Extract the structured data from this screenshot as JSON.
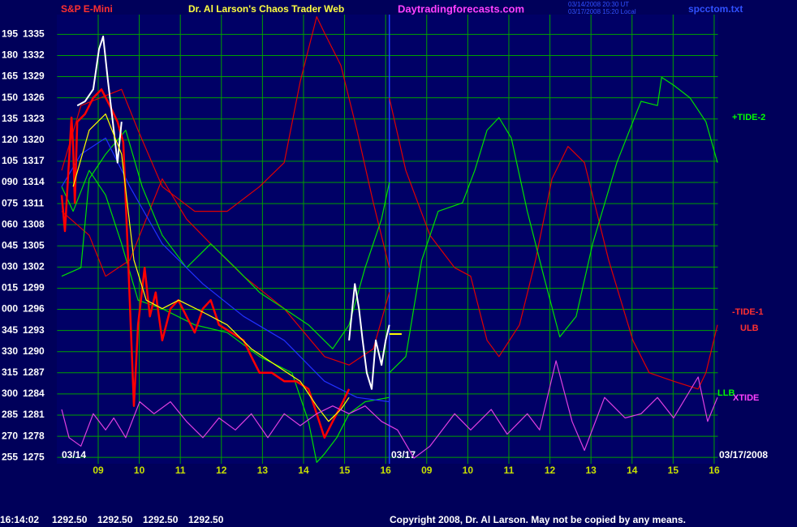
{
  "chart_data": {
    "type": "line",
    "header": {
      "symbol": "S&P E-Mini",
      "title": "Dr. Al Larson's Chaos Trader Web",
      "site": "Daytradingforecasts.com",
      "stamp1": "03/14/2008 20:30 UT",
      "stamp2": "03/17/2008 15:20 Local",
      "file": "spcctom.txt"
    },
    "xlim": [
      0,
      16.09
    ],
    "ylim": [
      1274.1,
      1337.8
    ],
    "xticks": [
      {
        "value": 1,
        "label": "09"
      },
      {
        "value": 2,
        "label": "10"
      },
      {
        "value": 3,
        "label": "11"
      },
      {
        "value": 4,
        "label": "12"
      },
      {
        "value": 5,
        "label": "13"
      },
      {
        "value": 6,
        "label": "14"
      },
      {
        "value": 7,
        "label": "15"
      },
      {
        "value": 8,
        "label": "16"
      },
      {
        "value": 9,
        "label": "09"
      },
      {
        "value": 10,
        "label": "10"
      },
      {
        "value": 11,
        "label": "11"
      },
      {
        "value": 12,
        "label": "12"
      },
      {
        "value": 13,
        "label": "13"
      },
      {
        "value": 14,
        "label": "14"
      },
      {
        "value": 15,
        "label": "15"
      },
      {
        "value": 16,
        "label": "16"
      }
    ],
    "yticks": [
      1335,
      1332,
      1329,
      1326,
      1323,
      1320,
      1317,
      1314,
      1311,
      1308,
      1305,
      1302,
      1299,
      1296,
      1293,
      1290,
      1287,
      1284,
      1281,
      1278,
      1275
    ],
    "angle_labels": [
      "195",
      "180",
      "165",
      "150",
      "135",
      "120",
      "105",
      "090",
      "075",
      "060",
      "045",
      "030",
      "015",
      "000",
      "345",
      "330",
      "315",
      "300",
      "285",
      "270",
      "255"
    ],
    "divider_x": 8.09,
    "date_labels": [
      "03/14",
      "03/17",
      "03/17/2008"
    ],
    "grid": true,
    "series": [
      {
        "color": "#e00000",
        "x": [
          0.11,
          0.58,
          1.57,
          1.97,
          2.56,
          3.35,
          4.14,
          4.93,
          5.53,
          5.92,
          6.32,
          6.51,
          6.91,
          7.3,
          7.7,
          8.09
        ],
        "values": [
          1315.7,
          1324.9,
          1327.2,
          1321.4,
          1313.4,
          1309.9,
          1309.9,
          1313.4,
          1316.8,
          1328.3,
          1337.5,
          1335.2,
          1330.6,
          1321.4,
          1311.1,
          1301.9
        ]
      },
      {
        "color": "#e00000",
        "x": [
          0.11,
          0.78,
          1.18,
          1.77,
          2.56,
          3.15,
          3.74,
          4.54,
          5.53,
          6.51,
          7.11,
          7.7,
          8.09
        ],
        "values": [
          1309.9,
          1306.5,
          1300.7,
          1303.0,
          1314.5,
          1308.8,
          1305.3,
          1300.7,
          1296.1,
          1289.3,
          1288.1,
          1290.4,
          1298.4
        ]
      },
      {
        "color": "#00e000",
        "x": [
          0.11,
          0.58,
          0.78,
          1.18,
          1.67,
          2.07,
          2.56,
          3.15,
          3.74,
          4.34,
          4.93,
          5.53,
          6.12,
          6.71,
          7.11,
          7.5,
          7.9,
          8.09
        ],
        "values": [
          1300.7,
          1301.9,
          1314.5,
          1318.0,
          1321.4,
          1313.4,
          1306.5,
          1301.9,
          1305.3,
          1301.9,
          1298.4,
          1296.1,
          1293.8,
          1290.4,
          1293.8,
          1301.9,
          1308.8,
          1314.0
        ]
      },
      {
        "color": "#00e000",
        "x": [
          0.11,
          0.39,
          0.78,
          1.18,
          1.57,
          1.97,
          2.56,
          3.35,
          4.14,
          4.93,
          5.72,
          6.12,
          6.32,
          6.51,
          6.81,
          7.11,
          7.5,
          8.09
        ],
        "values": [
          1313.4,
          1309.9,
          1315.7,
          1312.2,
          1305.3,
          1297.3,
          1296.1,
          1293.8,
          1292.7,
          1289.3,
          1287.0,
          1280.1,
          1274.3,
          1275.5,
          1277.8,
          1281.2,
          1282.9,
          1283.5
        ]
      },
      {
        "color": "#2030ff",
        "x": [
          0.11,
          0.58,
          1.18,
          1.77,
          2.56,
          3.55,
          4.54,
          5.53,
          6.51,
          7.3,
          8.09
        ],
        "values": [
          1313.4,
          1318.0,
          1320.3,
          1313.4,
          1305.3,
          1299.6,
          1295.0,
          1291.6,
          1285.8,
          1283.5,
          1282.9
        ]
      },
      {
        "color": "#ff0000",
        "width": 2.5,
        "x": [
          0.11,
          0.19,
          0.35,
          0.39,
          0.43,
          0.49,
          0.68,
          0.88,
          1.08,
          1.28,
          1.47,
          1.61,
          1.73,
          1.87,
          1.97,
          2.13,
          2.26,
          2.4,
          2.56,
          2.76,
          2.95,
          3.15,
          3.35,
          3.55,
          3.74,
          3.94,
          4.24,
          4.54,
          4.73,
          4.93,
          5.23,
          5.53,
          5.82,
          6.12,
          6.32,
          6.51,
          6.71,
          6.91,
          7.11
        ],
        "values": [
          1312.2,
          1307.1,
          1323.2,
          1319.1,
          1311.1,
          1322.6,
          1323.7,
          1326.0,
          1327.2,
          1324.9,
          1322.6,
          1319.7,
          1303.0,
          1282.3,
          1293.8,
          1301.9,
          1295.0,
          1298.4,
          1291.6,
          1296.1,
          1297.3,
          1295.0,
          1292.7,
          1296.1,
          1297.3,
          1293.8,
          1292.7,
          1291.6,
          1289.3,
          1287.0,
          1287.0,
          1285.8,
          1285.8,
          1284.7,
          1281.2,
          1277.8,
          1280.1,
          1282.3,
          1284.7
        ]
      },
      {
        "color": "#ffffff",
        "width": 2,
        "x": [
          0.49,
          0.68,
          0.88,
          1.02,
          1.12,
          1.24,
          1.38,
          1.47,
          1.57,
          4.0,
          7.11,
          7.25,
          7.35,
          7.44,
          7.54,
          7.66,
          7.76,
          7.9,
          8.0,
          8.09
        ],
        "values": [
          1324.9,
          1325.5,
          1327.2,
          1332.9,
          1334.7,
          1328.3,
          1321.4,
          1316.8,
          1322.6,
          null,
          1291.6,
          1299.6,
          1296.1,
          1291.6,
          1287.0,
          1284.7,
          1291.6,
          1288.1,
          1291.6,
          1293.8
        ]
      },
      {
        "color": "#ffff00",
        "x": [
          0.39,
          0.78,
          1.18,
          1.57,
          1.87,
          2.17,
          2.56,
          2.96,
          3.55,
          4.14,
          4.73,
          5.32,
          5.92,
          6.32,
          6.61,
          6.91,
          7.11
        ],
        "values": [
          1313.4,
          1321.4,
          1323.7,
          1318.0,
          1303.0,
          1297.3,
          1296.1,
          1297.3,
          1295.6,
          1293.8,
          1290.4,
          1288.1,
          1285.8,
          1282.3,
          1280.1,
          1281.8,
          1283.5
        ]
      },
      {
        "color": "#ffff00",
        "width": 2,
        "x": [
          8.09,
          8.39
        ],
        "values": [
          1292.5,
          1292.5
        ]
      },
      {
        "name": "-TIDE-1",
        "color": "#e00000",
        "x": [
          8.09,
          8.49,
          9.08,
          9.68,
          10.07,
          10.47,
          10.76,
          11.26,
          11.65,
          12.05,
          12.44,
          12.84,
          13.43,
          14.02,
          14.42,
          15.01,
          15.61,
          15.8,
          16.08
        ],
        "values": [
          1326.0,
          1315.7,
          1306.5,
          1301.9,
          1300.7,
          1291.6,
          1289.3,
          1293.8,
          1303.0,
          1314.5,
          1319.1,
          1316.8,
          1303.0,
          1291.6,
          1287.0,
          1285.8,
          1284.7,
          1287.0,
          1293.8
        ]
      },
      {
        "name": "+TIDE-2",
        "color": "#00e000",
        "x": [
          8.09,
          8.49,
          8.88,
          9.28,
          9.87,
          10.17,
          10.47,
          10.76,
          11.06,
          11.45,
          11.85,
          12.24,
          12.64,
          13.04,
          13.63,
          14.02,
          14.22,
          14.62,
          14.72,
          15.01,
          15.41,
          15.8,
          16.08
        ],
        "values": [
          1287.0,
          1289.3,
          1303.0,
          1309.9,
          1311.1,
          1315.7,
          1321.4,
          1323.2,
          1320.3,
          1309.9,
          1300.7,
          1292.1,
          1295.0,
          1305.3,
          1316.8,
          1322.6,
          1325.5,
          1324.9,
          1328.9,
          1327.8,
          1326.0,
          1322.6,
          1316.8
        ]
      },
      {
        "name": "XTIDE",
        "color": "#e040e0",
        "x": [
          0.11,
          0.29,
          0.58,
          0.88,
          1.18,
          1.38,
          1.67,
          2.01,
          2.36,
          2.76,
          3.15,
          3.55,
          3.94,
          4.34,
          4.73,
          5.13,
          5.53,
          5.92,
          6.32,
          6.71,
          7.11,
          7.5,
          7.9,
          8.29,
          8.69,
          9.08,
          9.68,
          10.07,
          10.57,
          10.96,
          11.45,
          11.75,
          12.15,
          12.54,
          12.84,
          13.33,
          13.83,
          14.22,
          14.62,
          15.01,
          15.61,
          15.84,
          16.08
        ],
        "values": [
          1281.8,
          1277.8,
          1276.6,
          1281.2,
          1278.9,
          1280.6,
          1277.8,
          1282.9,
          1281.2,
          1282.9,
          1280.1,
          1277.8,
          1280.6,
          1278.9,
          1281.2,
          1277.8,
          1281.2,
          1279.5,
          1281.2,
          1282.3,
          1281.2,
          1282.3,
          1280.1,
          1278.9,
          1274.9,
          1276.6,
          1281.2,
          1278.9,
          1281.8,
          1278.3,
          1281.2,
          1278.9,
          1288.7,
          1280.1,
          1276.0,
          1283.5,
          1280.6,
          1281.2,
          1283.5,
          1280.6,
          1286.4,
          1280.1,
          1283.5
        ]
      }
    ],
    "right_labels": [
      {
        "text": "+TIDE-2",
        "color": "#00ff00"
      },
      {
        "text": "-TIDE-1",
        "color": "#ff3030"
      },
      {
        "text": "ULB",
        "color": "#ff3030"
      },
      {
        "text": "LLB",
        "color": "#00ff00"
      },
      {
        "text": "XTIDE",
        "color": "#ff40ff"
      }
    ],
    "status": {
      "time": "16:14:02",
      "quotes": [
        "1292.50",
        "1292.50",
        "1292.50",
        "1292.50"
      ]
    },
    "copyright": "Copyright 2008, Dr. Al Larson. May not be copied by any means."
  }
}
